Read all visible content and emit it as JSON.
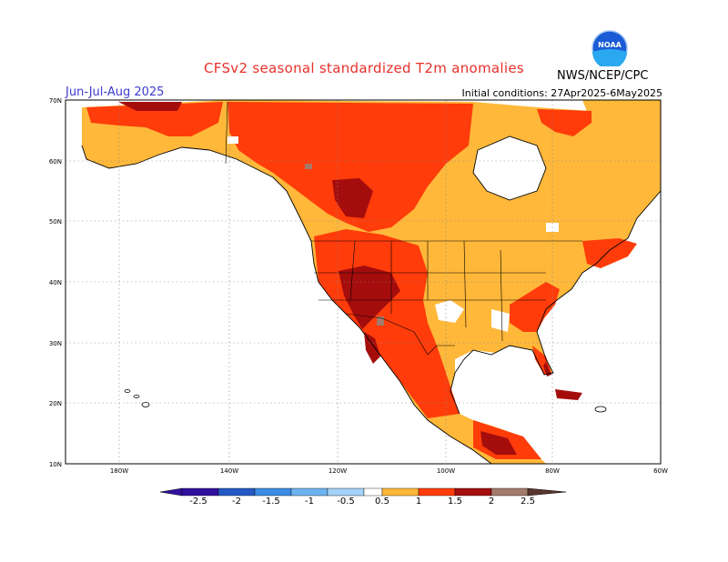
{
  "header": {
    "title": "CFSv2 seasonal standardized T2m anomalies",
    "season": "Jun-Jul-Aug 2025",
    "organization": "NWS/NCEP/CPC",
    "initial_conditions": "Initial conditions: 27Apr2025-6May2025",
    "logo_text": "NOAA"
  },
  "map": {
    "lat_labels": [
      "70N",
      "60N",
      "50N",
      "40N",
      "30N",
      "20N",
      "10N"
    ],
    "lon_labels": [
      "180W",
      "140W",
      "120W",
      "100W",
      "80W",
      "60W"
    ],
    "colors": {
      "ocean": "#ffffff",
      "coast": "#000000",
      "a05": "#ffb83a",
      "a10": "#ff3c0a",
      "a15": "#a50d0d",
      "a20": "#a27b6c",
      "neutral": "#ffffff"
    }
  },
  "colorbar": {
    "labels": [
      "-2.5",
      "-2",
      "-1.5",
      "-1",
      "-0.5",
      "0.5",
      "1",
      "1.5",
      "2",
      "2.5"
    ],
    "colors": [
      "#3110a0",
      "#2358c4",
      "#3c8ce6",
      "#6cb2f0",
      "#a4d2f8",
      "#ffffff",
      "#ffb83a",
      "#ff3c0a",
      "#a50d0d",
      "#a27b6c",
      "#5a3530"
    ]
  }
}
